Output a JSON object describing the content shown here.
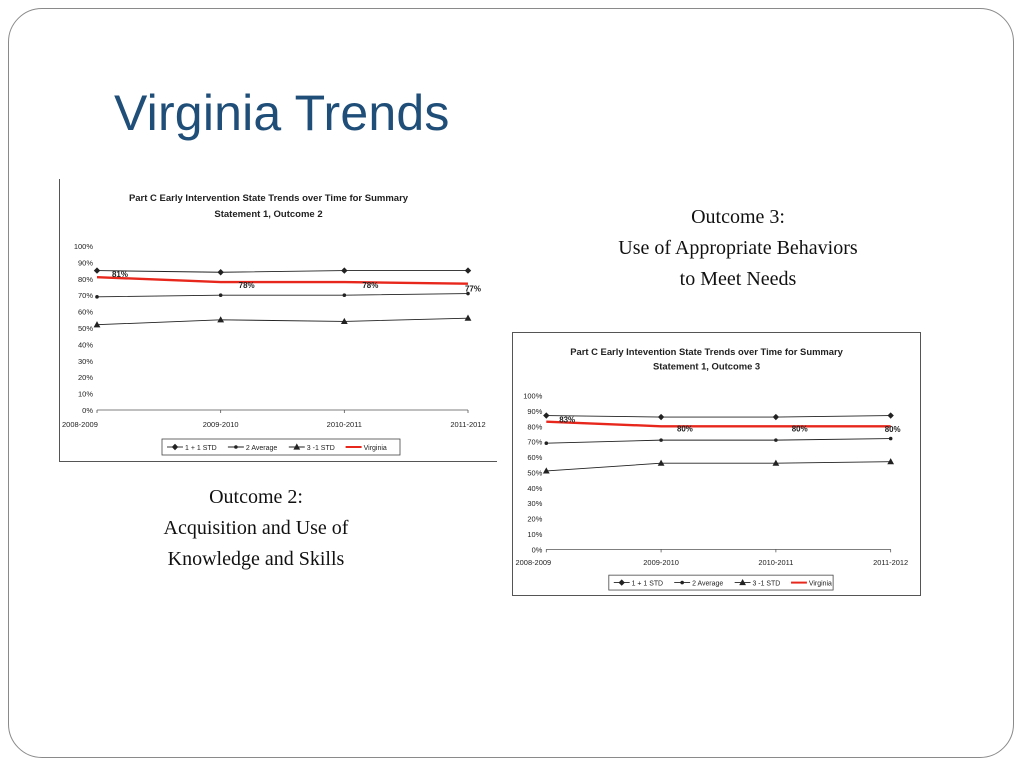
{
  "slide": {
    "title": "Virginia Trends"
  },
  "captions": {
    "outcome2": {
      "heading": "Outcome 2:",
      "line1": "Acquisition and Use of",
      "line2": "Knowledge and Skills"
    },
    "outcome3": {
      "heading": "Outcome 3:",
      "line1": "Use of Appropriate Behaviors",
      "line2": "to Meet Needs"
    }
  },
  "chart_data": [
    {
      "type": "line",
      "title_line1": "Part C Early Intervention State Trends over Time for Summary",
      "title_line2": "Statement 1, Outcome 2",
      "x": [
        "2008-2009",
        "2009-2010",
        "2010-2011",
        "2011-2012"
      ],
      "ylim": [
        0,
        100
      ],
      "y_ticks": [
        "0%",
        "10%",
        "20%",
        "30%",
        "40%",
        "50%",
        "60%",
        "70%",
        "80%",
        "90%",
        "100%"
      ],
      "grid": false,
      "legend_position": "bottom",
      "series": [
        {
          "name": "1 + 1 STD",
          "values": [
            85,
            84,
            85,
            85
          ],
          "color": "#222222",
          "marker": "diamond"
        },
        {
          "name": "2 Average",
          "values": [
            69,
            70,
            70,
            71
          ],
          "color": "#222222",
          "marker": "dot"
        },
        {
          "name": "3 -1 STD",
          "values": [
            52,
            55,
            54,
            56
          ],
          "color": "#222222",
          "marker": "triangle"
        },
        {
          "name": "Virginia",
          "values": [
            81,
            78,
            78,
            77
          ],
          "color": "#e8271c",
          "marker": "none",
          "data_labels": [
            "81%",
            "78%",
            "78%",
            "77%"
          ]
        }
      ]
    },
    {
      "type": "line",
      "title_line1": "Part C Early Intevention State Trends over Time for Summary",
      "title_line2": "Statement 1, Outcome 3",
      "x": [
        "2008-2009",
        "2009-2010",
        "2010-2011",
        "2011-2012"
      ],
      "ylim": [
        0,
        100
      ],
      "y_ticks": [
        "0%",
        "10%",
        "20%",
        "30%",
        "40%",
        "50%",
        "60%",
        "70%",
        "80%",
        "90%",
        "100%"
      ],
      "grid": false,
      "legend_position": "bottom",
      "series": [
        {
          "name": "1 + 1 STD",
          "values": [
            87,
            86,
            86,
            87
          ],
          "color": "#222222",
          "marker": "diamond"
        },
        {
          "name": "2 Average",
          "values": [
            69,
            71,
            71,
            72
          ],
          "color": "#222222",
          "marker": "dot"
        },
        {
          "name": "3 -1 STD",
          "values": [
            51,
            56,
            56,
            57
          ],
          "color": "#222222",
          "marker": "triangle"
        },
        {
          "name": "Virginia",
          "values": [
            83,
            80,
            80,
            80
          ],
          "color": "#e8271c",
          "marker": "none",
          "data_labels": [
            "83%",
            "80%",
            "80%",
            "80%"
          ]
        }
      ]
    }
  ]
}
